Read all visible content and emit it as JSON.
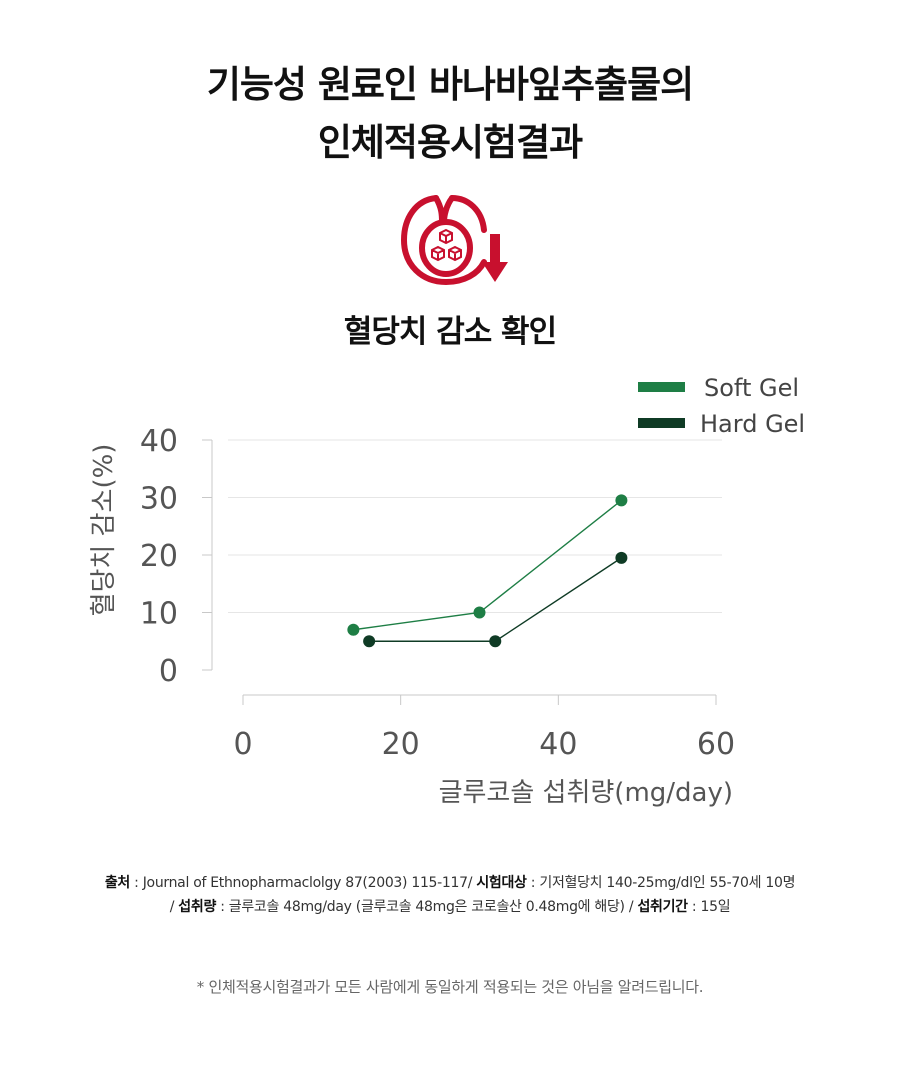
{
  "title": {
    "line1": "기능성 원료인 바나바잎추출물의",
    "line2": "인체적용시험결과"
  },
  "icon": {
    "name": "blood-sugar-drop-down-icon",
    "color": "#c8102e"
  },
  "subtitle": "혈당치 감소 확인",
  "colors": {
    "soft_gel": "#1e7e45",
    "hard_gel": "#0f3b25",
    "accent": "#c8102e"
  },
  "chart_data": {
    "type": "line",
    "xlabel": "글루코솔 섭취량(mg/day)",
    "ylabel": "혈당치 감소(%)",
    "xlim": [
      0,
      60
    ],
    "ylim": [
      0,
      40
    ],
    "x_ticks": [
      "0",
      "20",
      "40",
      "60"
    ],
    "y_ticks": [
      "0",
      "10",
      "20",
      "30",
      "40"
    ],
    "grid": true,
    "legend_position": "top-right",
    "series": [
      {
        "name": "Soft Gel",
        "color": "#1e7e45",
        "x": [
          14,
          30,
          48
        ],
        "y": [
          7,
          10,
          29.5
        ]
      },
      {
        "name": "Hard Gel",
        "color": "#0f3b25",
        "x": [
          16,
          32,
          48
        ],
        "y": [
          5,
          5,
          19.5
        ]
      }
    ]
  },
  "footnote": {
    "source_label": "출처",
    "source_text": " : Journal of Ethnopharmaclolgy 87(2003) 115-117/ ",
    "subjects_label": "시험대상",
    "subjects_text": " : 기저혈당치 140-25mg/dl인 55-70세 10명",
    "dose_prefix": "/ ",
    "dose_label": "섭취량",
    "dose_text": " : 글루코솔 48mg/day (글루코솔 48mg은 코로솔산 0.48mg에 해당) / ",
    "period_label": "섭취기간",
    "period_text": " : 15일"
  },
  "disclaimer": "* 인체적용시험결과가 모든 사람에게 동일하게 적용되는 것은 아님을 알려드립니다."
}
